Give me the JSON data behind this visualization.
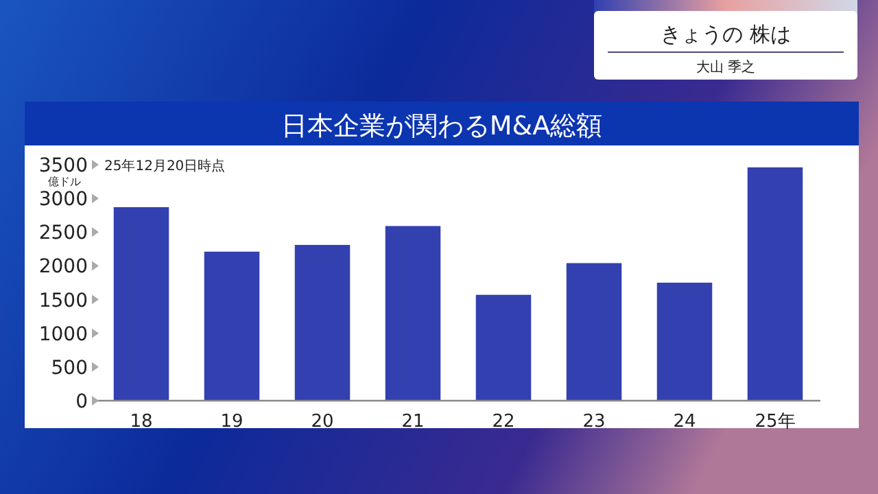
{
  "chart_data": {
    "type": "bar",
    "title": "日本企業が関わるM&A総額",
    "categories": [
      "18",
      "19",
      "20",
      "21",
      "22",
      "23",
      "24",
      "25年"
    ],
    "values": [
      2870,
      2210,
      2310,
      2590,
      1570,
      2040,
      1750,
      3460
    ],
    "color": "#3340b0",
    "ylabel": "億ドル",
    "ylim": [
      0,
      3500
    ],
    "yticks": [
      0,
      500,
      1000,
      1500,
      2000,
      2500,
      3000,
      3500
    ],
    "grid": false,
    "annotations": [
      "25年12月20日時点",
      "きょうの 株は",
      "大山 季之"
    ]
  }
}
